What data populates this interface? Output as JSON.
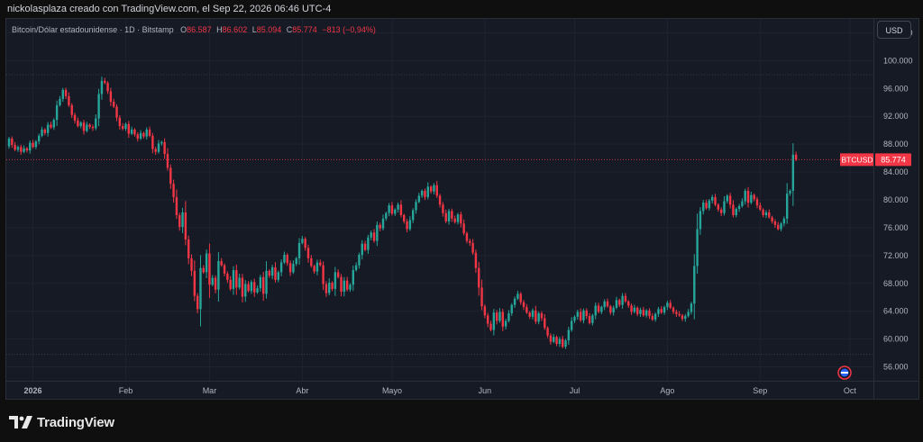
{
  "header": {
    "credit": "nickolasplaza creado con TradingView.com, el Sep 22, 2026 06:46 UTC-4"
  },
  "legend": {
    "title": "Bitcoin/Dólar estadounidense · 1D · Bitstamp",
    "o_key": "O",
    "o": "86.587",
    "h_key": "H",
    "h": "86.602",
    "l_key": "L",
    "l": "85.094",
    "c_key": "C",
    "c": "85.774",
    "change": "−813 (−0,94%)"
  },
  "currency_button": "USD",
  "footer": {
    "brand": "TradingView"
  },
  "colors": {
    "up": "#26a69a",
    "down": "#f23645",
    "background": "#161a25",
    "grid": "#1f2330",
    "axis_text": "#b2b5be"
  },
  "chart_data": {
    "type": "candlestick",
    "symbol_label": "BTCUSD",
    "last_price": 85774,
    "last_price_label": "85.774",
    "ylim": [
      54000,
      106000
    ],
    "y_ticks": [
      56000,
      60000,
      64000,
      68000,
      72000,
      76000,
      80000,
      84000,
      88000,
      92000,
      96000,
      100000,
      104000
    ],
    "y_tick_labels": [
      "56.000",
      "60.000",
      "64.000",
      "68.000",
      "72.000",
      "76.000",
      "80.000",
      "84.000",
      "88.000",
      "92.000",
      "96.000",
      "100.000",
      "104.000"
    ],
    "x_ticks": [
      {
        "label": "2026",
        "day": 8,
        "bold": true
      },
      {
        "label": "Feb",
        "day": 39
      },
      {
        "label": "Mar",
        "day": 67
      },
      {
        "label": "Abr",
        "day": 98
      },
      {
        "label": "Mayo",
        "day": 128
      },
      {
        "label": "Jun",
        "day": 159
      },
      {
        "label": "Jul",
        "day": 189
      },
      {
        "label": "Ago",
        "day": 220
      },
      {
        "label": "Sep",
        "day": 251
      },
      {
        "label": "Oct",
        "day": 281
      }
    ],
    "hlines": [
      98000,
      57800
    ],
    "closes": [
      88800,
      87900,
      87200,
      87600,
      86900,
      87400,
      87100,
      88200,
      87600,
      88400,
      89200,
      90100,
      89600,
      90800,
      90400,
      91500,
      93600,
      94500,
      95800,
      94900,
      93600,
      92200,
      91400,
      90600,
      91100,
      89900,
      90800,
      90500,
      90300,
      91700,
      95200,
      97100,
      96800,
      95600,
      94100,
      93400,
      91800,
      90600,
      90200,
      90900,
      89500,
      90100,
      89400,
      88800,
      89600,
      89100,
      90100,
      89200,
      87300,
      86900,
      88100,
      88300,
      86600,
      84600,
      82300,
      80400,
      77800,
      76100,
      78200,
      74300,
      71600,
      69800,
      66200,
      64300,
      70200,
      69600,
      72300,
      67800,
      68800,
      67100,
      71200,
      70600,
      69400,
      68500,
      67200,
      69900,
      67400,
      68800,
      66100,
      67900,
      66900,
      68200,
      66700,
      67300,
      68900,
      66500,
      69800,
      69100,
      70300,
      68500,
      69600,
      71000,
      72100,
      70900,
      69600,
      70800,
      71600,
      73800,
      74400,
      73100,
      71600,
      70500,
      69700,
      71000,
      70600,
      67900,
      66600,
      68100,
      67200,
      69600,
      68900,
      66800,
      68400,
      67100,
      67800,
      69900,
      70600,
      72100,
      73700,
      72800,
      74600,
      75300,
      74100,
      76400,
      75900,
      77300,
      78100,
      79200,
      78000,
      78600,
      79300,
      77800,
      76900,
      75800,
      77100,
      78500,
      79700,
      80600,
      81300,
      80400,
      81900,
      81200,
      82100,
      80600,
      79300,
      78100,
      76900,
      78400,
      77300,
      76800,
      77900,
      76600,
      75200,
      74100,
      73800,
      72400,
      70200,
      67400,
      64700,
      63400,
      62200,
      61300,
      63800,
      62600,
      63900,
      61800,
      62600,
      63700,
      64900,
      65800,
      66500,
      65300,
      64600,
      63800,
      63200,
      64100,
      62500,
      63700,
      63000,
      61600,
      60500,
      59600,
      60300,
      59300,
      60000,
      58900,
      59800,
      61300,
      62600,
      63200,
      63900,
      62700,
      64100,
      63300,
      62300,
      63400,
      64800,
      63900,
      64600,
      65400,
      64700,
      63800,
      64500,
      65600,
      64900,
      66200,
      65400,
      64800,
      63900,
      64500,
      63600,
      64200,
      63400,
      64100,
      63300,
      62800,
      63600,
      64300,
      63800,
      64600,
      65200,
      64500,
      63900,
      63600,
      63400,
      62900,
      63300,
      63900,
      65100,
      70500,
      75800,
      78400,
      79600,
      78800,
      79900,
      80400,
      79300,
      78600,
      78100,
      79800,
      80600,
      79300,
      77800,
      78700,
      79100,
      79800,
      81300,
      79600,
      80700,
      80100,
      79200,
      78600,
      77800,
      78200,
      77500,
      76900,
      76400,
      75800,
      76600,
      77300,
      80900,
      81300,
      86500,
      85774
    ],
    "open": 87700,
    "first_day": 0
  }
}
